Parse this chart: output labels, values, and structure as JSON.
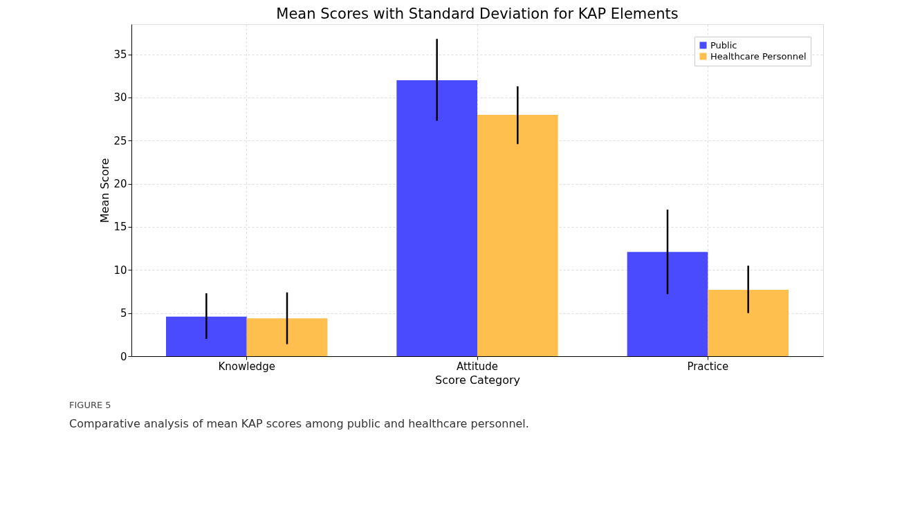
{
  "chart_data": {
    "type": "bar",
    "title": "Mean Scores with Standard Deviation for KAP Elements",
    "xlabel": "Score Category",
    "ylabel": "Mean Score",
    "categories": [
      "Knowledge",
      "Attitude",
      "Practice"
    ],
    "series": [
      {
        "name": "Public",
        "color": "#4a4aff",
        "values": [
          4.6,
          32.0,
          12.1
        ],
        "errors": [
          [
            2.0,
            7.3
          ],
          [
            27.3,
            36.8
          ],
          [
            7.2,
            17.0
          ]
        ]
      },
      {
        "name": "Healthcare Personnel",
        "color": "#ffbf4f",
        "values": [
          4.4,
          28.0,
          7.7
        ],
        "errors": [
          [
            1.4,
            7.4
          ],
          [
            24.6,
            31.3
          ],
          [
            5.0,
            10.5
          ]
        ]
      }
    ],
    "ylim": [
      0,
      38.5
    ],
    "yticks": [
      0,
      5,
      10,
      15,
      20,
      25,
      30,
      35
    ],
    "grid": true,
    "legend": "top right",
    "annotations": [
      "FIGURE 5",
      "Comparative analysis of mean KAP scores among public and healthcare personnel."
    ]
  }
}
